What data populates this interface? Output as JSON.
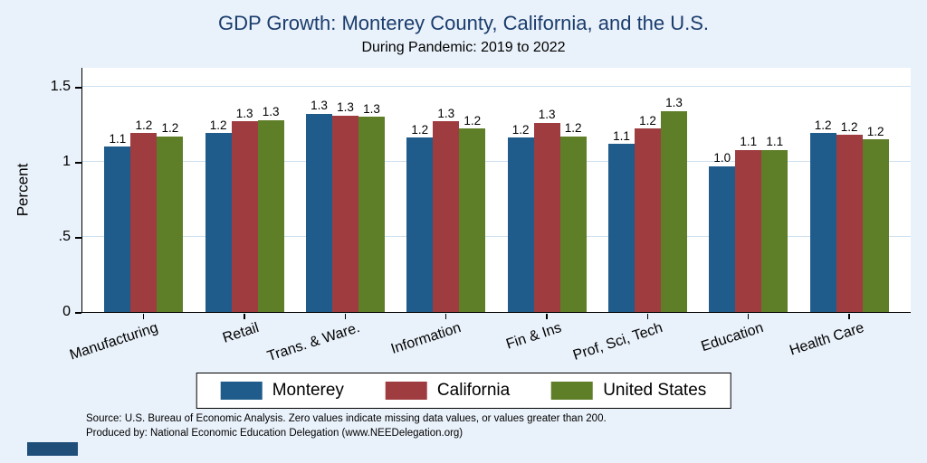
{
  "chart_data": {
    "type": "bar",
    "title": "GDP Growth: Monterey County, California, and the U.S.",
    "subtitle": "During Pandemic: 2019 to 2022",
    "ylabel": "Percent",
    "xlabel": "",
    "ylim": [
      0,
      1.63
    ],
    "grid": true,
    "legend_position": "bottom",
    "yticks": [
      {
        "label": "0",
        "value": 0
      },
      {
        "label": ".5",
        "value": 0.5
      },
      {
        "label": "1",
        "value": 1
      },
      {
        "label": "1.5",
        "value": 1.5
      }
    ],
    "categories": [
      "Manufacturing",
      "Retail",
      "Trans. & Ware.",
      "Information",
      "Fin & Ins",
      "Prof, Sci, Tech",
      "Education",
      "Health Care"
    ],
    "series": [
      {
        "name": "Monterey",
        "color": "#1f5c8b",
        "values": [
          1.1,
          1.19,
          1.32,
          1.16,
          1.16,
          1.12,
          0.97,
          1.19
        ],
        "labels": [
          "1.1",
          "1.2",
          "1.3",
          "1.2",
          "1.2",
          "1.1",
          "1.0",
          "1.2"
        ]
      },
      {
        "name": "California",
        "color": "#9e3c40",
        "values": [
          1.19,
          1.27,
          1.31,
          1.27,
          1.26,
          1.22,
          1.08,
          1.18
        ],
        "labels": [
          "1.2",
          "1.3",
          "1.3",
          "1.3",
          "1.3",
          "1.2",
          "1.1",
          "1.2"
        ]
      },
      {
        "name": "United States",
        "color": "#5f7e28",
        "values": [
          1.17,
          1.28,
          1.3,
          1.22,
          1.17,
          1.34,
          1.08,
          1.15
        ],
        "labels": [
          "1.2",
          "1.3",
          "1.3",
          "1.2",
          "1.2",
          "1.3",
          "1.1",
          "1.2"
        ]
      }
    ],
    "colors": {
      "background": "#e9f1fa",
      "plot_background": "#ffffff",
      "gridline": "#cfe0f0",
      "title": "#1a3d6d",
      "axis": "#000000",
      "logo": "#1f4e79"
    }
  },
  "notes": {
    "source": "Source: U.S. Bureau of Economic Analysis. Zero values indicate missing data values, or values greater than 200.",
    "produced_by": "Produced by: National Economic Education Delegation (www.NEEDelegation.org)"
  }
}
